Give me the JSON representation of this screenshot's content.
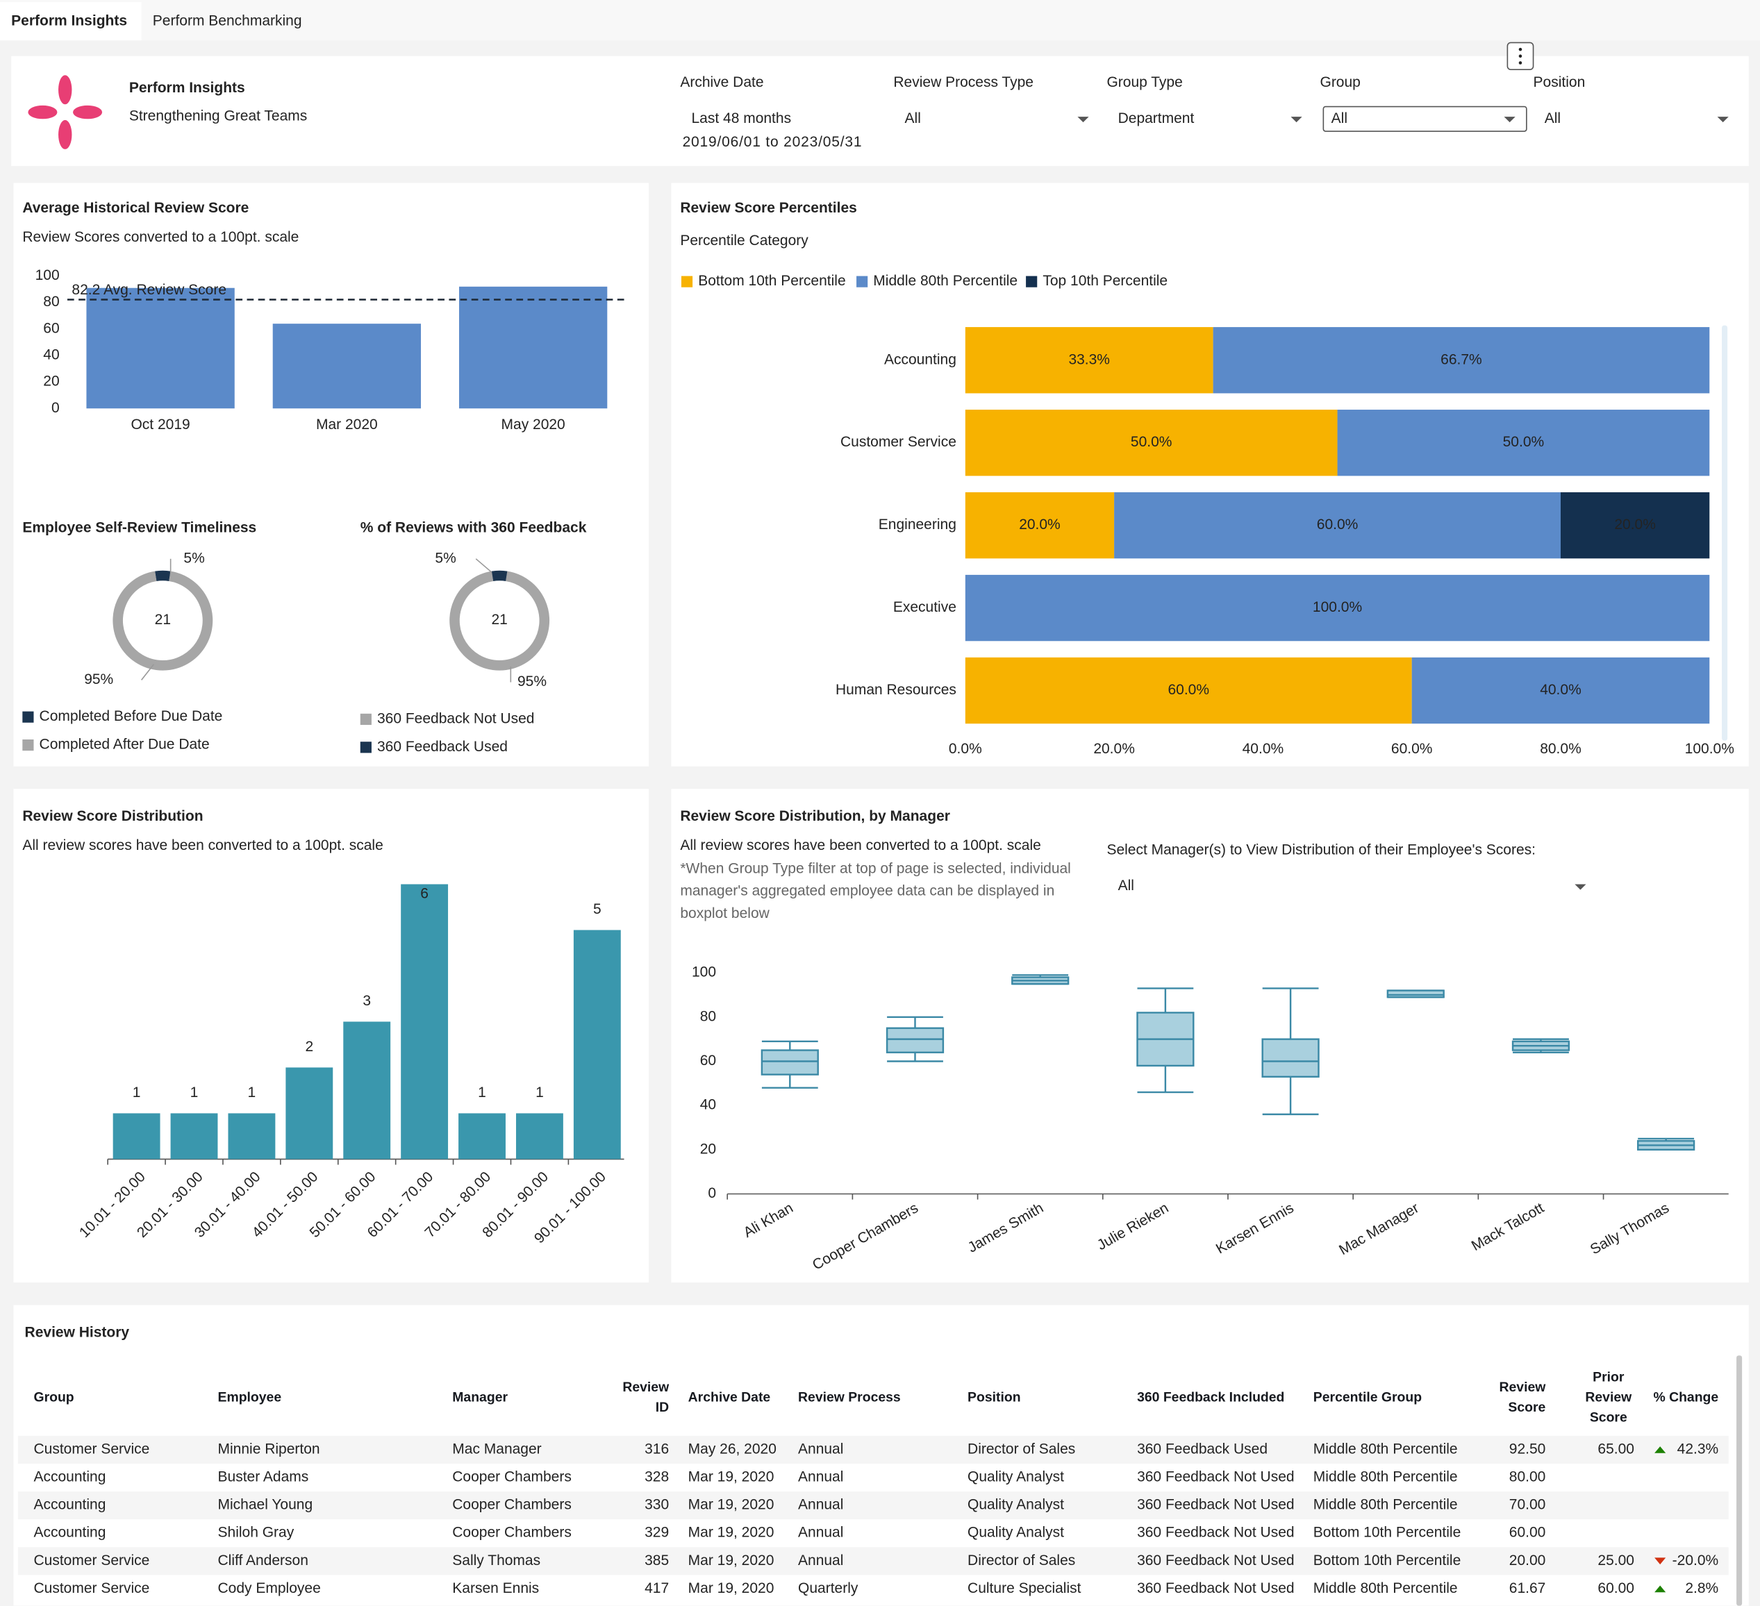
{
  "tabs": [
    "Perform Insights",
    "Perform Benchmarking"
  ],
  "header": {
    "title": "Perform Insights",
    "subtitle": "Strengthening Great Teams"
  },
  "filters": [
    {
      "label": "Archive Date",
      "value": "Last 48 months",
      "note": "2019/06/01 to 2023/05/31"
    },
    {
      "label": "Review Process Type",
      "value": "All"
    },
    {
      "label": "Group Type",
      "value": "Department"
    },
    {
      "label": "Group",
      "value": "All"
    },
    {
      "label": "Position",
      "value": "All"
    }
  ],
  "chart_data": [
    {
      "type": "bar",
      "title": "Average Historical Review Score",
      "subtitle": "Review Scores converted to a 100pt. scale",
      "categories": [
        "Oct 2019",
        "Mar 2020",
        "May 2020"
      ],
      "values": [
        91,
        64,
        92
      ],
      "color": "#5b8ac9",
      "ylim": [
        0,
        100
      ],
      "yticks": [
        0,
        20,
        40,
        60,
        80,
        100
      ],
      "reference_line": {
        "value": 82.2,
        "label": "82.2 Avg. Review Score"
      }
    },
    {
      "type": "donut",
      "title": "Employee Self-Review Timeliness",
      "center_label": "21",
      "categories": [
        "Completed Before Due Date",
        "Completed After Due Date"
      ],
      "values": [
        5,
        95
      ],
      "value_labels": [
        "5%",
        "95%"
      ],
      "colors": [
        "#1b3550",
        "#a6a6a6"
      ]
    },
    {
      "type": "donut",
      "title": "% of Reviews with 360 Feedback",
      "center_label": "21",
      "categories": [
        "360 Feedback Not Used",
        "360 Feedback Used"
      ],
      "values": [
        95,
        5
      ],
      "value_labels": [
        "95%",
        "5%"
      ],
      "colors": [
        "#a6a6a6",
        "#1b3550"
      ]
    },
    {
      "type": "stacked-hbar",
      "title": "Review Score Percentiles",
      "legend_title": "Percentile Category",
      "categories": [
        "Accounting",
        "Customer Service",
        "Engineering",
        "Executive",
        "Human Resources"
      ],
      "series": [
        {
          "name": "Bottom 10th Percentile",
          "color": "#f7b200",
          "values": [
            33.3,
            50,
            20,
            null,
            60
          ],
          "value_labels": [
            "33.3%",
            "50.0%",
            "20.0%",
            null,
            "60.0%"
          ]
        },
        {
          "name": "Middle 80th Percentile",
          "color": "#5b8ac9",
          "values": [
            66.7,
            50,
            60,
            100,
            40
          ],
          "value_labels": [
            "66.7%",
            "50.0%",
            "60.0%",
            "100.0%",
            "40.0%"
          ]
        },
        {
          "name": "Top 10th Percentile",
          "color": "#14304f",
          "values": [
            null,
            null,
            20,
            null,
            null
          ],
          "value_labels": [
            null,
            null,
            "20.0%",
            null,
            null
          ]
        }
      ],
      "xlim": [
        0,
        100
      ],
      "xticks": [
        {
          "value": 0,
          "label": "0.0%"
        },
        {
          "value": 20,
          "label": "20.0%"
        },
        {
          "value": 40,
          "label": "40.0%"
        },
        {
          "value": 60,
          "label": "60.0%"
        },
        {
          "value": 80,
          "label": "80.0%"
        },
        {
          "value": 100,
          "label": "100.0%"
        }
      ]
    },
    {
      "type": "bar",
      "title": "Review Score Distribution",
      "subtitle": "All review scores have been converted to a 100pt. scale",
      "categories": [
        "10.01 - 20.00",
        "20.01 - 30.00",
        "30.01 - 40.00",
        "40.01 - 50.00",
        "50.01 - 60.00",
        "60.01 - 70.00",
        "70.01 - 80.00",
        "80.01 - 90.00",
        "90.01 - 100.00"
      ],
      "values": [
        1,
        1,
        1,
        2,
        3,
        6,
        1,
        1,
        5
      ],
      "color": "#3a97ad"
    },
    {
      "type": "boxplot",
      "title": "Review Score Distribution, by Manager",
      "subtitle": "All review scores have been converted to a 100pt. scale",
      "note": "*When Group Type filter at top of page is selected, individual manager's aggregated employee data can be displayed in boxplot below",
      "control_label": "Select Manager(s) to View Distribution of their Employee's Scores:",
      "control_value": "All",
      "categories": [
        "Ali Khan",
        "Cooper Chambers",
        "James Smith",
        "Julie Rieken",
        "Karsen Ennis",
        "Mac Manager",
        "Mack Talcott",
        "Sally Thomas"
      ],
      "min": [
        48,
        60,
        95,
        46,
        36,
        89,
        64,
        20
      ],
      "q1": [
        54,
        64,
        95,
        58,
        53,
        89,
        65,
        20
      ],
      "median": [
        60,
        70,
        96.5,
        70,
        60,
        90,
        67,
        22
      ],
      "q3": [
        65,
        75,
        98,
        82,
        70,
        92,
        69,
        24
      ],
      "max": [
        69,
        80,
        99,
        93,
        93,
        92,
        70,
        25
      ],
      "color": "#a9d0de",
      "stroke": "#3b89a6",
      "ylim": [
        0,
        100
      ],
      "yticks": [
        0,
        20,
        40,
        60,
        80,
        100
      ]
    }
  ],
  "table": {
    "title": "Review History",
    "columns": [
      "Group",
      "Employee",
      "Manager",
      "Review ID",
      "Archive Date",
      "Review Process",
      "Position",
      "360 Feedback Included",
      "Percentile Group",
      "Review Score",
      "Prior Review Score",
      "% Change"
    ],
    "rows": [
      [
        "Customer Service",
        "Minnie Riperton",
        "Mac Manager",
        "316",
        "May 26, 2020",
        "Annual",
        "Director of Sales",
        "360 Feedback Used",
        "Middle 80th Percentile",
        "92.50",
        "65.00",
        "42.3%"
      ],
      [
        "Accounting",
        "Buster Adams",
        "Cooper Chambers",
        "328",
        "Mar 19, 2020",
        "Annual",
        "Quality Analyst",
        "360 Feedback Not Used",
        "Middle 80th Percentile",
        "80.00",
        null,
        null
      ],
      [
        "Accounting",
        "Michael Young",
        "Cooper Chambers",
        "330",
        "Mar 19, 2020",
        "Annual",
        "Quality Analyst",
        "360 Feedback Not Used",
        "Middle 80th Percentile",
        "70.00",
        null,
        null
      ],
      [
        "Accounting",
        "Shiloh Gray",
        "Cooper Chambers",
        "329",
        "Mar 19, 2020",
        "Annual",
        "Quality Analyst",
        "360 Feedback Not Used",
        "Bottom 10th Percentile",
        "60.00",
        null,
        null
      ],
      [
        "Customer Service",
        "Cliff Anderson",
        "Sally Thomas",
        "385",
        "Mar 19, 2020",
        "Annual",
        "Director of Sales",
        "360 Feedback Not Used",
        "Bottom 10th Percentile",
        "20.00",
        "25.00",
        "-20.0%"
      ],
      [
        "Customer Service",
        "Cody Employee",
        "Karsen Ennis",
        "417",
        "Mar 19, 2020",
        "Quarterly",
        "Culture Specialist",
        "360 Feedback Not Used",
        "Middle 80th Percentile",
        "61.67",
        "60.00",
        "2.8%"
      ]
    ]
  }
}
